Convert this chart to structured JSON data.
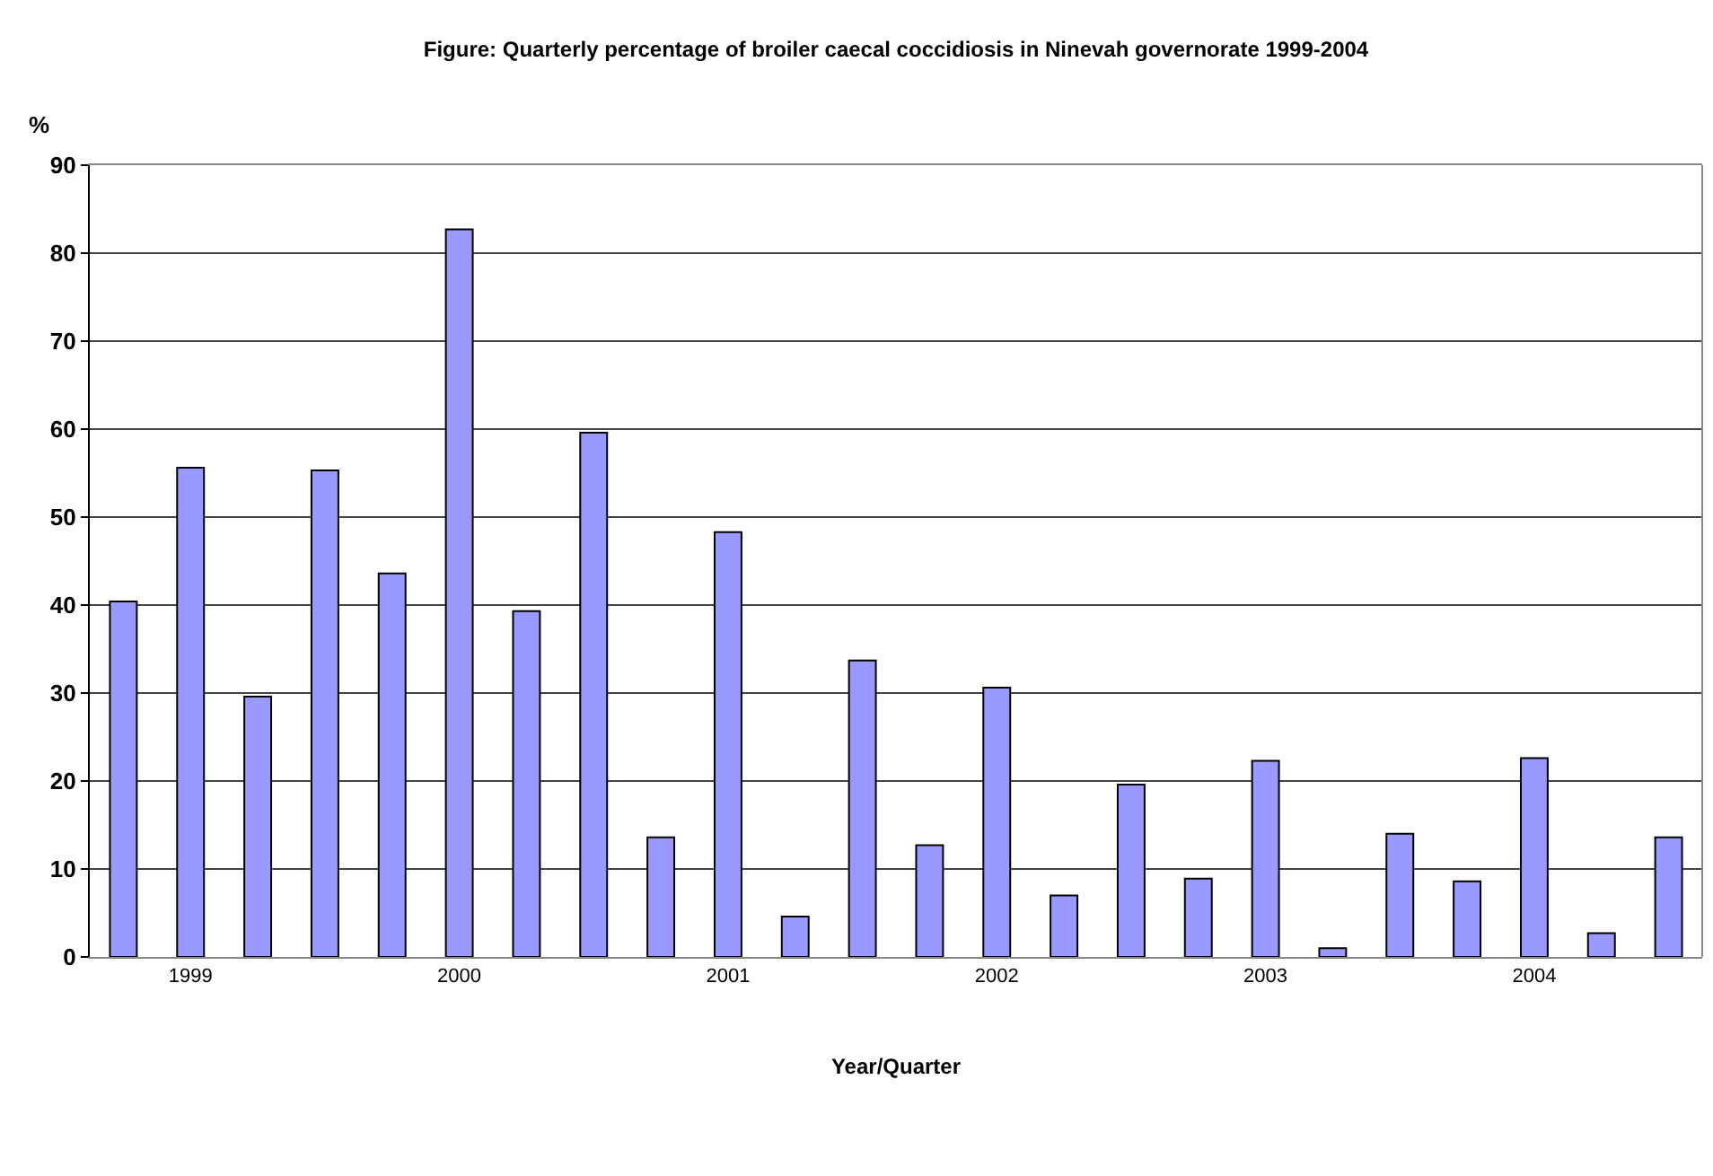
{
  "chart_data": {
    "type": "bar",
    "title": "Figure: Quarterly percentage of broiler caecal coccidiosis in Ninevah governorate 1999-2004",
    "ylabel": "%",
    "xlabel": "Year/Quarter",
    "categories": [
      null,
      "1999",
      null,
      null,
      null,
      "2000",
      null,
      null,
      null,
      "2001",
      null,
      null,
      null,
      "2002",
      null,
      null,
      null,
      "2003",
      null,
      null,
      null,
      "2004",
      null,
      null
    ],
    "values": [
      40.4,
      55.6,
      29.6,
      55.3,
      43.6,
      82.7,
      39.3,
      59.6,
      13.6,
      48.3,
      4.6,
      33.7,
      12.7,
      30.6,
      7.0,
      19.6,
      8.9,
      22.3,
      1.0,
      14.0,
      8.6,
      22.6,
      2.7,
      13.6
    ],
    "color": "#9999ff",
    "ylim": [
      0,
      90
    ],
    "yticks": [
      0,
      10,
      20,
      30,
      40,
      50,
      60,
      70,
      80,
      90
    ],
    "grid": "y"
  }
}
